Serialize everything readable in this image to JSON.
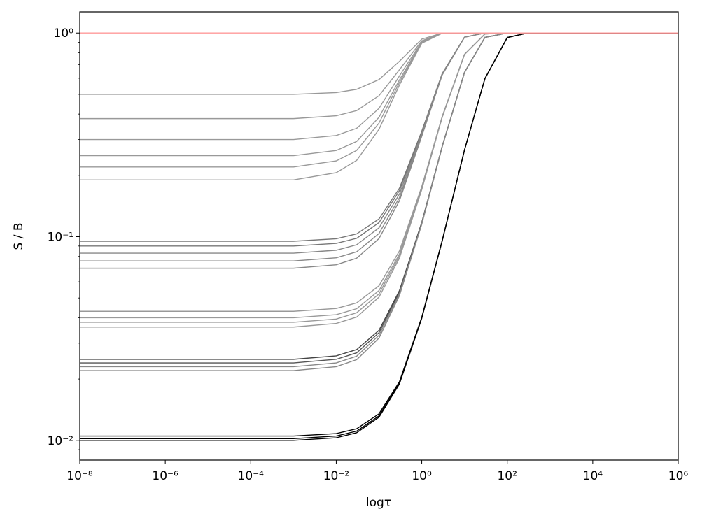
{
  "chart_data": {
    "type": "line",
    "xlabel": "logτ",
    "ylabel": "S / B",
    "xscale": "log",
    "yscale": "log",
    "xlim": [
      1e-08,
      1000000.0
    ],
    "ylim": [
      0.008,
      1.27
    ],
    "xticks": [
      {
        "value": 1e-08,
        "label": "10⁻⁸"
      },
      {
        "value": 1e-06,
        "label": "10⁻⁶"
      },
      {
        "value": 0.0001,
        "label": "10⁻⁴"
      },
      {
        "value": 0.01,
        "label": "10⁻²"
      },
      {
        "value": 1,
        "label": "10⁰"
      },
      {
        "value": 100,
        "label": "10²"
      },
      {
        "value": 10000,
        "label": "10⁴"
      },
      {
        "value": 1000000,
        "label": "10⁶"
      }
    ],
    "yticks": [
      {
        "value": 0.01,
        "label": "10⁻²"
      },
      {
        "value": 0.1,
        "label": "10⁻¹"
      },
      {
        "value": 1,
        "label": "10⁰"
      }
    ],
    "yminorticks": [
      0.009,
      0.02,
      0.03,
      0.04,
      0.05,
      0.06,
      0.07,
      0.08,
      0.09,
      0.2,
      0.3,
      0.4,
      0.5,
      0.6,
      0.7,
      0.8,
      0.9
    ],
    "x": [
      1e-08,
      0.001,
      0.01,
      0.03,
      0.1,
      0.3,
      1,
      3,
      10,
      30,
      100,
      300,
      1000000
    ],
    "series": [
      {
        "color": "#999999",
        "values": [
          0.5,
          0.5,
          0.51,
          0.529,
          0.591,
          0.726,
          0.933,
          0.999,
          1,
          1,
          1,
          1,
          1
        ]
      },
      {
        "color": "#999999",
        "values": [
          0.38,
          0.38,
          0.3924,
          0.416,
          0.4922,
          0.6596,
          0.9163,
          0.9985,
          1,
          1,
          1,
          1,
          1
        ]
      },
      {
        "color": "#999999",
        "values": [
          0.3,
          0.3,
          0.314,
          0.3406,
          0.4267,
          0.6157,
          0.9055,
          0.9983,
          1,
          1,
          1,
          1,
          1
        ]
      },
      {
        "color": "#999999",
        "values": [
          0.25,
          0.25,
          0.265,
          0.2935,
          0.3858,
          0.5883,
          0.8988,
          0.9981,
          1,
          1,
          1,
          1,
          1
        ]
      },
      {
        "color": "#999999",
        "values": [
          0.22,
          0.22,
          0.2356,
          0.2652,
          0.3612,
          0.5718,
          0.8947,
          0.9981,
          1,
          1,
          1,
          1,
          1
        ]
      },
      {
        "color": "#999999",
        "values": [
          0.19,
          0.19,
          0.2062,
          0.237,
          0.3366,
          0.5553,
          0.8907,
          0.998,
          1,
          1,
          1,
          1,
          1
        ]
      },
      {
        "color": "#777777",
        "values": [
          0.095,
          0.095,
          0.0977,
          0.1032,
          0.1222,
          0.1728,
          0.3294,
          0.6317,
          0.9549,
          0.9999,
          1,
          1,
          1
        ]
      },
      {
        "color": "#777777",
        "values": [
          0.09,
          0.09,
          0.0927,
          0.0982,
          0.1173,
          0.1683,
          0.3257,
          0.6296,
          0.9547,
          0.9999,
          1,
          1,
          1
        ]
      },
      {
        "color": "#888888",
        "values": [
          0.083,
          0.083,
          0.0858,
          0.0913,
          0.1105,
          0.1619,
          0.3205,
          0.6268,
          0.9543,
          0.9999,
          1,
          1,
          1
        ]
      },
      {
        "color": "#888888",
        "values": [
          0.076,
          0.076,
          0.0788,
          0.0843,
          0.1037,
          0.1555,
          0.3153,
          0.6239,
          0.954,
          0.9999,
          1,
          1,
          1
        ]
      },
      {
        "color": "#888888",
        "values": [
          0.07,
          0.07,
          0.0728,
          0.0784,
          0.0979,
          0.15,
          0.3109,
          0.6215,
          0.9537,
          0.9999,
          1,
          1,
          1
        ]
      },
      {
        "color": "#999999",
        "values": [
          0.043,
          0.043,
          0.0444,
          0.0473,
          0.0574,
          0.0851,
          0.176,
          0.3894,
          0.7866,
          0.9895,
          1,
          1,
          1
        ]
      },
      {
        "color": "#999999",
        "values": [
          0.04,
          0.04,
          0.0414,
          0.0443,
          0.0544,
          0.0822,
          0.1734,
          0.3875,
          0.7859,
          0.9894,
          1,
          1,
          1
        ]
      },
      {
        "color": "#999999",
        "values": [
          0.038,
          0.038,
          0.0394,
          0.0423,
          0.0524,
          0.0803,
          0.1717,
          0.3862,
          0.7855,
          0.9894,
          1,
          1,
          1
        ]
      },
      {
        "color": "#999999",
        "values": [
          0.036,
          0.036,
          0.0375,
          0.0403,
          0.0505,
          0.0784,
          0.17,
          0.385,
          0.785,
          0.9894,
          1,
          1,
          1
        ]
      },
      {
        "color": "#444444",
        "values": [
          0.025,
          0.025,
          0.026,
          0.0279,
          0.0347,
          0.0543,
          0.1176,
          0.2775,
          0.6412,
          0.9514,
          1,
          1,
          1
        ]
      },
      {
        "color": "#555555",
        "values": [
          0.024,
          0.024,
          0.025,
          0.0269,
          0.0338,
          0.0533,
          0.1167,
          0.2768,
          0.6408,
          0.9514,
          1,
          1,
          1
        ]
      },
      {
        "color": "#888888",
        "values": [
          0.023,
          0.023,
          0.024,
          0.0259,
          0.0328,
          0.0523,
          0.1158,
          0.276,
          0.6405,
          0.9513,
          1,
          1,
          1
        ]
      },
      {
        "color": "#888888",
        "values": [
          0.022,
          0.022,
          0.023,
          0.0249,
          0.0318,
          0.0513,
          0.1149,
          0.2753,
          0.6401,
          0.9513,
          1,
          1,
          1
        ]
      },
      {
        "color": "#000000",
        "values": [
          0.0105,
          0.0105,
          0.0108,
          0.0114,
          0.0135,
          0.0194,
          0.0402,
          0.0956,
          0.2668,
          0.5973,
          0.9507,
          0.9999,
          1
        ]
      },
      {
        "color": "#000000",
        "values": [
          0.0102,
          0.0102,
          0.0105,
          0.0111,
          0.0132,
          0.0191,
          0.0399,
          0.0953,
          0.2666,
          0.5972,
          0.9507,
          0.9999,
          1
        ]
      },
      {
        "color": "#000000",
        "values": [
          0.01,
          0.01,
          0.0103,
          0.0109,
          0.013,
          0.0189,
          0.0397,
          0.0951,
          0.2664,
          0.5971,
          0.9507,
          0.9999,
          1
        ]
      },
      {
        "color": "#ff9999",
        "values": [
          1,
          1,
          1,
          1,
          1,
          1,
          1,
          1,
          1,
          1,
          1,
          1,
          1
        ]
      }
    ]
  }
}
